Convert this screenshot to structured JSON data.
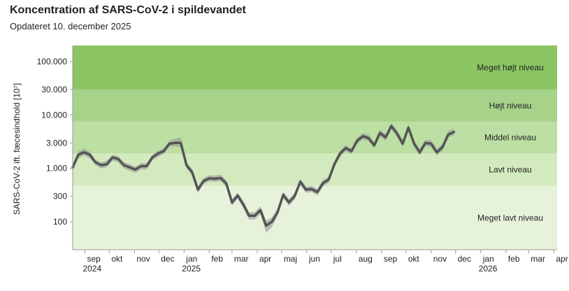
{
  "header": {
    "title": "Koncentration af SARS-CoV-2 i spildevandet",
    "subtitle": "Opdateret 10. december 2025"
  },
  "colors": {
    "band_very_high": "#8cc563",
    "band_high": "#a6d389",
    "band_medium": "#bcdfa3",
    "band_low": "#d3eabf",
    "band_very_low": "#e6f2da",
    "line": "#555555",
    "ribbon": "#9a9a9a",
    "axis": "#999999",
    "text": "#222222"
  },
  "chart_data": {
    "type": "line",
    "title": "Koncentration af SARS-CoV-2 i spildevandet",
    "subtitle": "Opdateret 10. december 2025",
    "ylabel": "SARS-CoV-2 ift. fæcesindhold [10⁷]",
    "yscale": "log",
    "ylim": [
      30,
      200000
    ],
    "xlim": [
      "2024-08-17",
      "2026-04-05"
    ],
    "grid": false,
    "yticks": [
      {
        "value": 100,
        "label": "100"
      },
      {
        "value": 300,
        "label": "300"
      },
      {
        "value": 1000,
        "label": "1.000"
      },
      {
        "value": 3000,
        "label": "3.000"
      },
      {
        "value": 10000,
        "label": "10.000"
      },
      {
        "value": 30000,
        "label": "30.000"
      },
      {
        "value": 100000,
        "label": "100.000"
      }
    ],
    "xticks": [
      {
        "date": "2024-09-01",
        "label": "sep",
        "year": "2024"
      },
      {
        "date": "2024-10-01",
        "label": "okt",
        "year": ""
      },
      {
        "date": "2024-11-01",
        "label": "nov",
        "year": ""
      },
      {
        "date": "2024-12-01",
        "label": "dec",
        "year": ""
      },
      {
        "date": "2025-01-01",
        "label": "jan",
        "year": "2025"
      },
      {
        "date": "2025-02-01",
        "label": "feb",
        "year": ""
      },
      {
        "date": "2025-03-01",
        "label": "mar",
        "year": ""
      },
      {
        "date": "2025-04-01",
        "label": "apr",
        "year": ""
      },
      {
        "date": "2025-05-01",
        "label": "maj",
        "year": ""
      },
      {
        "date": "2025-06-01",
        "label": "jun",
        "year": ""
      },
      {
        "date": "2025-07-01",
        "label": "jul",
        "year": ""
      },
      {
        "date": "2025-08-01",
        "label": "aug",
        "year": ""
      },
      {
        "date": "2025-09-01",
        "label": "sep",
        "year": ""
      },
      {
        "date": "2025-10-01",
        "label": "okt",
        "year": ""
      },
      {
        "date": "2025-11-01",
        "label": "nov",
        "year": ""
      },
      {
        "date": "2025-12-01",
        "label": "dec",
        "year": ""
      },
      {
        "date": "2026-01-01",
        "label": "jan",
        "year": "2026"
      },
      {
        "date": "2026-02-01",
        "label": "feb",
        "year": ""
      },
      {
        "date": "2026-03-01",
        "label": "mar",
        "year": ""
      },
      {
        "date": "2026-04-01",
        "label": "apr",
        "year": ""
      }
    ],
    "bands": [
      {
        "name": "Meget lavt niveau",
        "from": 30,
        "to": 470,
        "color": "#e6f2da"
      },
      {
        "name": "Lavt niveau",
        "from": 470,
        "to": 1900,
        "color": "#d3eabf"
      },
      {
        "name": "Middel niveau",
        "from": 1900,
        "to": 7500,
        "color": "#bcdfa3"
      },
      {
        "name": "Højt niveau",
        "from": 7500,
        "to": 30000,
        "color": "#a6d389"
      },
      {
        "name": "Meget højt niveau",
        "from": 30000,
        "to": 200000,
        "color": "#8cc563"
      }
    ],
    "series": [
      {
        "points": [
          {
            "date": "2024-08-17",
            "value": 1050,
            "low": 900,
            "high": 1200
          },
          {
            "date": "2024-08-24",
            "value": 1800,
            "low": 1550,
            "high": 2100
          },
          {
            "date": "2024-08-31",
            "value": 2000,
            "low": 1750,
            "high": 2350
          },
          {
            "date": "2024-09-07",
            "value": 1800,
            "low": 1550,
            "high": 2050
          },
          {
            "date": "2024-09-14",
            "value": 1300,
            "low": 1150,
            "high": 1450
          },
          {
            "date": "2024-09-21",
            "value": 1150,
            "low": 1000,
            "high": 1300
          },
          {
            "date": "2024-09-28",
            "value": 1200,
            "low": 1050,
            "high": 1400
          },
          {
            "date": "2024-10-05",
            "value": 1600,
            "low": 1400,
            "high": 1800
          },
          {
            "date": "2024-10-12",
            "value": 1500,
            "low": 1300,
            "high": 1700
          },
          {
            "date": "2024-10-19",
            "value": 1150,
            "low": 1000,
            "high": 1300
          },
          {
            "date": "2024-10-26",
            "value": 1050,
            "low": 900,
            "high": 1200
          },
          {
            "date": "2024-11-02",
            "value": 950,
            "low": 820,
            "high": 1080
          },
          {
            "date": "2024-11-09",
            "value": 1100,
            "low": 950,
            "high": 1250
          },
          {
            "date": "2024-11-16",
            "value": 1100,
            "low": 950,
            "high": 1250
          },
          {
            "date": "2024-11-23",
            "value": 1600,
            "low": 1400,
            "high": 1800
          },
          {
            "date": "2024-11-30",
            "value": 1900,
            "low": 1650,
            "high": 2150
          },
          {
            "date": "2024-12-07",
            "value": 2100,
            "low": 1850,
            "high": 2400
          },
          {
            "date": "2024-12-14",
            "value": 2900,
            "low": 2550,
            "high": 3300
          },
          {
            "date": "2024-12-21",
            "value": 3000,
            "low": 2600,
            "high": 3600
          },
          {
            "date": "2024-12-28",
            "value": 3000,
            "low": 2500,
            "high": 3800
          },
          {
            "date": "2025-01-04",
            "value": 1150,
            "low": 1000,
            "high": 1300
          },
          {
            "date": "2025-01-11",
            "value": 850,
            "low": 740,
            "high": 970
          },
          {
            "date": "2025-01-18",
            "value": 400,
            "low": 350,
            "high": 460
          },
          {
            "date": "2025-01-25",
            "value": 580,
            "low": 510,
            "high": 660
          },
          {
            "date": "2025-02-01",
            "value": 650,
            "low": 570,
            "high": 740
          },
          {
            "date": "2025-02-08",
            "value": 640,
            "low": 560,
            "high": 740
          },
          {
            "date": "2025-02-15",
            "value": 660,
            "low": 580,
            "high": 760
          },
          {
            "date": "2025-02-22",
            "value": 520,
            "low": 450,
            "high": 600
          },
          {
            "date": "2025-03-01",
            "value": 230,
            "low": 200,
            "high": 265
          },
          {
            "date": "2025-03-08",
            "value": 310,
            "low": 270,
            "high": 355
          },
          {
            "date": "2025-03-15",
            "value": 210,
            "low": 180,
            "high": 245
          },
          {
            "date": "2025-03-22",
            "value": 130,
            "low": 110,
            "high": 152
          },
          {
            "date": "2025-03-29",
            "value": 130,
            "low": 110,
            "high": 152
          },
          {
            "date": "2025-04-05",
            "value": 165,
            "low": 140,
            "high": 195
          },
          {
            "date": "2025-04-12",
            "value": 85,
            "low": 62,
            "high": 105
          },
          {
            "date": "2025-04-19",
            "value": 100,
            "low": 80,
            "high": 120
          },
          {
            "date": "2025-04-26",
            "value": 150,
            "low": 128,
            "high": 175
          },
          {
            "date": "2025-05-03",
            "value": 320,
            "low": 280,
            "high": 365
          },
          {
            "date": "2025-05-10",
            "value": 230,
            "low": 200,
            "high": 265
          },
          {
            "date": "2025-05-17",
            "value": 300,
            "low": 260,
            "high": 345
          },
          {
            "date": "2025-05-24",
            "value": 560,
            "low": 490,
            "high": 640
          },
          {
            "date": "2025-05-31",
            "value": 400,
            "low": 350,
            "high": 460
          },
          {
            "date": "2025-06-07",
            "value": 410,
            "low": 360,
            "high": 470
          },
          {
            "date": "2025-06-14",
            "value": 360,
            "low": 310,
            "high": 415
          },
          {
            "date": "2025-06-21",
            "value": 530,
            "low": 460,
            "high": 610
          },
          {
            "date": "2025-06-28",
            "value": 620,
            "low": 540,
            "high": 710
          },
          {
            "date": "2025-07-05",
            "value": 1200,
            "low": 1050,
            "high": 1370
          },
          {
            "date": "2025-07-12",
            "value": 1900,
            "low": 1650,
            "high": 2150
          },
          {
            "date": "2025-07-19",
            "value": 2400,
            "low": 2100,
            "high": 2750
          },
          {
            "date": "2025-07-26",
            "value": 2100,
            "low": 1850,
            "high": 2400
          },
          {
            "date": "2025-08-02",
            "value": 3300,
            "low": 2900,
            "high": 3750
          },
          {
            "date": "2025-08-09",
            "value": 4000,
            "low": 3500,
            "high": 4600
          },
          {
            "date": "2025-08-16",
            "value": 3700,
            "low": 3200,
            "high": 4300
          },
          {
            "date": "2025-08-23",
            "value": 2700,
            "low": 2350,
            "high": 3100
          },
          {
            "date": "2025-08-30",
            "value": 4600,
            "low": 4000,
            "high": 5300
          },
          {
            "date": "2025-09-06",
            "value": 3800,
            "low": 3300,
            "high": 4400
          },
          {
            "date": "2025-09-13",
            "value": 6200,
            "low": 5400,
            "high": 7100
          },
          {
            "date": "2025-09-20",
            "value": 4500,
            "low": 3900,
            "high": 5200
          },
          {
            "date": "2025-09-27",
            "value": 2900,
            "low": 2500,
            "high": 3400
          },
          {
            "date": "2025-10-04",
            "value": 5800,
            "low": 5100,
            "high": 6600
          },
          {
            "date": "2025-10-11",
            "value": 2900,
            "low": 2500,
            "high": 3350
          },
          {
            "date": "2025-10-18",
            "value": 2000,
            "low": 1750,
            "high": 2300
          },
          {
            "date": "2025-10-25",
            "value": 3000,
            "low": 2600,
            "high": 3450
          },
          {
            "date": "2025-11-01",
            "value": 2900,
            "low": 2500,
            "high": 3350
          },
          {
            "date": "2025-11-08",
            "value": 2000,
            "low": 1750,
            "high": 2300
          },
          {
            "date": "2025-11-15",
            "value": 2500,
            "low": 2150,
            "high": 2900
          },
          {
            "date": "2025-11-22",
            "value": 4300,
            "low": 3750,
            "high": 5000
          },
          {
            "date": "2025-11-29",
            "value": 4800,
            "low": 4150,
            "high": 5600
          }
        ]
      }
    ]
  }
}
